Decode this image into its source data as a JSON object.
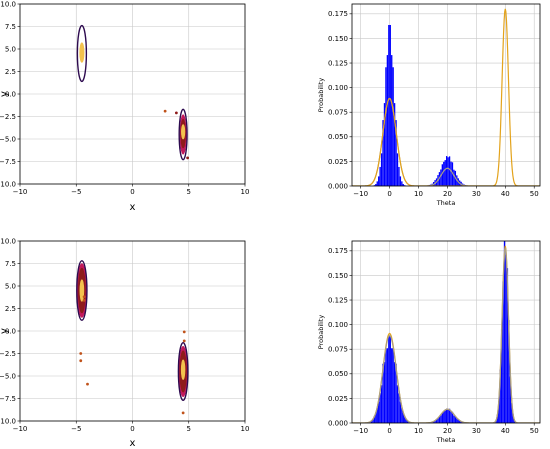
{
  "chart_data": [
    {
      "type": "scatter",
      "panel": "top-left",
      "xlabel": "x",
      "ylabel": "y",
      "xlim": [
        -10,
        10
      ],
      "ylim": [
        -10,
        10
      ],
      "xticks": [
        "−10",
        "−5",
        "0",
        "5",
        "10"
      ],
      "yticks": [
        "10.0",
        "7.5",
        "5.0",
        "2.5",
        "0.0",
        "−2.5",
        "−5.0",
        "−7.5",
        "−10.0"
      ],
      "grid": true,
      "contours": [
        {
          "cx": -4.5,
          "cy": 4.5,
          "rx": 0.4,
          "ry": 3.1,
          "color": "#2d0a4f",
          "fill": false
        },
        {
          "cx": 4.5,
          "cy": -4.5,
          "rx": 0.35,
          "ry": 2.8,
          "color": "#2d0a4f",
          "fill": false
        },
        {
          "cx": 4.5,
          "cy": -4.5,
          "rx": 0.28,
          "ry": 2.2,
          "color": "#c2185b",
          "fill": true
        },
        {
          "cx": 4.5,
          "cy": -4.4,
          "rx": 0.22,
          "ry": 1.6,
          "color": "#8e1b1b",
          "fill": true
        },
        {
          "cx": -4.5,
          "cy": 4.6,
          "rx": 0.2,
          "ry": 1.1,
          "color": "#f3c24e",
          "fill": true
        },
        {
          "cx": 4.5,
          "cy": -4.2,
          "rx": 0.16,
          "ry": 0.8,
          "color": "#f3c24e",
          "fill": true
        }
      ],
      "points": [
        {
          "x": 2.9,
          "y": -1.9,
          "color": "#c0521a"
        },
        {
          "x": 3.9,
          "y": -2.1,
          "color": "#8e1b1b"
        },
        {
          "x": 4.9,
          "y": -7.1,
          "color": "#8e1b1b"
        }
      ]
    },
    {
      "type": "bar",
      "panel": "top-right",
      "xlabel": "Theta",
      "ylabel": "Probability",
      "xlim": [
        -13,
        52
      ],
      "ylim": [
        0,
        0.185
      ],
      "xticks": [
        "−10",
        "0",
        "10",
        "20",
        "30",
        "40",
        "50"
      ],
      "yticks": [
        "0.000",
        "0.025",
        "0.050",
        "0.075",
        "0.100",
        "0.125",
        "0.150",
        "0.175"
      ],
      "grid": true,
      "bar_color": "#0000ff",
      "histogram_components": [
        {
          "mu": 0,
          "sigma": 1.6,
          "peak": 0.165
        },
        {
          "mu": 20,
          "sigma": 2.4,
          "peak": 0.029
        }
      ],
      "series": [
        {
          "color": "#a89f88",
          "components": [
            {
              "mu": 0,
              "sigma": 2.3,
              "peak": 0.089
            },
            {
              "mu": 20,
              "sigma": 2.2,
              "peak": 0.018
            }
          ]
        },
        {
          "color": "#e3a31c",
          "components": [
            {
              "mu": 0,
              "sigma": 2.3,
              "peak": 0.089
            },
            {
              "mu": 40,
              "sigma": 1.1,
              "peak": 0.18
            }
          ]
        }
      ]
    },
    {
      "type": "scatter",
      "panel": "bottom-left",
      "xlabel": "x",
      "ylabel": "y",
      "xlim": [
        -10,
        10
      ],
      "ylim": [
        -10,
        10
      ],
      "xticks": [
        "−10",
        "−5",
        "0",
        "5",
        "10"
      ],
      "yticks": [
        "10.0",
        "7.5",
        "5.0",
        "2.5",
        "0.0",
        "−2.5",
        "−5.0",
        "−7.5",
        "−10.0"
      ],
      "grid": true,
      "contours": [
        {
          "cx": -4.5,
          "cy": 4.5,
          "rx": 0.45,
          "ry": 3.3,
          "color": "#2d0a4f",
          "fill": false
        },
        {
          "cx": -4.5,
          "cy": 4.5,
          "rx": 0.4,
          "ry": 3.0,
          "color": "#c2185b",
          "fill": true
        },
        {
          "cx": -4.5,
          "cy": 4.5,
          "rx": 0.32,
          "ry": 2.5,
          "color": "#8e1b1b",
          "fill": true
        },
        {
          "cx": -4.5,
          "cy": 4.5,
          "rx": 0.18,
          "ry": 1.2,
          "color": "#f3c24e",
          "fill": true
        },
        {
          "cx": 4.5,
          "cy": -4.5,
          "rx": 0.42,
          "ry": 3.2,
          "color": "#2d0a4f",
          "fill": false
        },
        {
          "cx": 4.5,
          "cy": -4.5,
          "rx": 0.37,
          "ry": 2.8,
          "color": "#c2185b",
          "fill": true
        },
        {
          "cx": 4.5,
          "cy": -4.5,
          "rx": 0.3,
          "ry": 2.3,
          "color": "#8e1b1b",
          "fill": true
        },
        {
          "cx": 4.5,
          "cy": -4.3,
          "rx": 0.17,
          "ry": 1.1,
          "color": "#f3c24e",
          "fill": true
        }
      ],
      "points": [
        {
          "x": -4.6,
          "y": -2.5,
          "color": "#c0521a"
        },
        {
          "x": -4.6,
          "y": -3.3,
          "color": "#c0521a"
        },
        {
          "x": -4.0,
          "y": -5.9,
          "color": "#c0521a"
        },
        {
          "x": 4.6,
          "y": -0.1,
          "color": "#c0521a"
        },
        {
          "x": 4.6,
          "y": -1.1,
          "color": "#c0521a"
        },
        {
          "x": 4.5,
          "y": -9.1,
          "color": "#c0521a"
        },
        {
          "x": -4.3,
          "y": 3.8,
          "color": "#c0521a"
        },
        {
          "x": -4.3,
          "y": 3.4,
          "color": "#c0521a"
        }
      ]
    },
    {
      "type": "bar",
      "panel": "bottom-right",
      "xlabel": "Theta",
      "ylabel": "Probability",
      "xlim": [
        -13,
        52
      ],
      "ylim": [
        0,
        0.185
      ],
      "xticks": [
        "−10",
        "0",
        "10",
        "20",
        "30",
        "40",
        "50"
      ],
      "yticks": [
        "0.000",
        "0.025",
        "0.050",
        "0.075",
        "0.100",
        "0.125",
        "0.150",
        "0.175"
      ],
      "grid": true,
      "bar_color": "#0000ff",
      "histogram_components": [
        {
          "mu": 0,
          "sigma": 2.3,
          "peak": 0.089
        },
        {
          "mu": 20,
          "sigma": 2.3,
          "peak": 0.014
        },
        {
          "mu": 40,
          "sigma": 1.1,
          "peak": 0.18
        }
      ],
      "series": [
        {
          "color": "#e3a31c",
          "components": [
            {
              "mu": 0,
              "sigma": 2.3,
              "peak": 0.091
            },
            {
              "mu": 20,
              "sigma": 2.3,
              "peak": 0.014
            },
            {
              "mu": 40,
              "sigma": 1.1,
              "peak": 0.18
            }
          ]
        },
        {
          "color": "#a89f88",
          "components": [
            {
              "mu": 0,
              "sigma": 2.3,
              "peak": 0.089
            },
            {
              "mu": 20,
              "sigma": 2.3,
              "peak": 0.014
            },
            {
              "mu": 40,
              "sigma": 1.1,
              "peak": 0.178
            }
          ]
        }
      ]
    }
  ]
}
